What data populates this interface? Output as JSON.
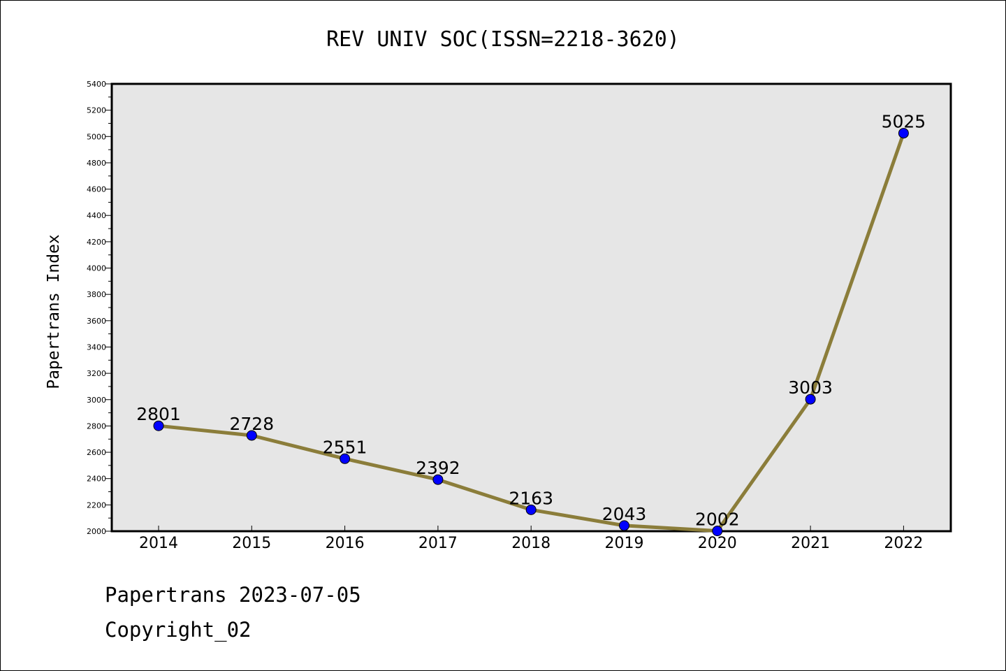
{
  "chart_data": {
    "type": "line",
    "title": "REV UNIV SOC(ISSN=2218-3620)",
    "ylabel": "Papertrans Index",
    "xlabel": "",
    "categories": [
      "2014",
      "2015",
      "2016",
      "2017",
      "2018",
      "2019",
      "2020",
      "2021",
      "2022"
    ],
    "series": [
      {
        "values": [
          2801,
          2728,
          2551,
          2392,
          2163,
          2043,
          2002,
          3003,
          5025
        ],
        "labels": [
          "2801",
          "2728",
          "2551",
          "2392",
          "2163",
          "2043",
          "2002",
          "3003",
          "5025"
        ]
      }
    ],
    "ylim": [
      2000,
      5400
    ],
    "yticks": [
      "2000",
      "2200",
      "2400",
      "2600",
      "2800",
      "3000",
      "3200",
      "3400",
      "3600",
      "3800",
      "4000",
      "4200",
      "4400",
      "4600",
      "4800",
      "5000",
      "5200",
      "5400"
    ],
    "grid": false,
    "legend": "none",
    "colors": {
      "plot_background": "#e6e6e6",
      "line": "#8b7d3a",
      "marker_fill": "#0000ff",
      "marker_edge": "#000000"
    }
  },
  "footer": {
    "date_line": "Papertrans 2023-07-05",
    "copyright_line": "Copyright_02"
  }
}
